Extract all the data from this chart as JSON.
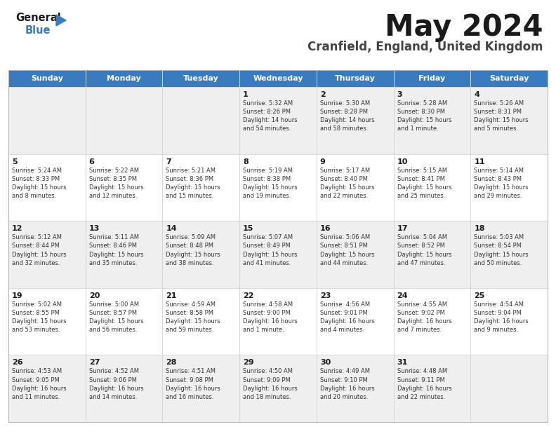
{
  "title": "May 2024",
  "subtitle": "Cranfield, England, United Kingdom",
  "header_color": "#3a7abf",
  "header_text_color": "#ffffff",
  "bg_color": "#ffffff",
  "text_color": "#333333",
  "days_of_week": [
    "Sunday",
    "Monday",
    "Tuesday",
    "Wednesday",
    "Thursday",
    "Friday",
    "Saturday"
  ],
  "calendar_data": [
    [
      "",
      "",
      "",
      "1\nSunrise: 5:32 AM\nSunset: 8:26 PM\nDaylight: 14 hours\nand 54 minutes.",
      "2\nSunrise: 5:30 AM\nSunset: 8:28 PM\nDaylight: 14 hours\nand 58 minutes.",
      "3\nSunrise: 5:28 AM\nSunset: 8:30 PM\nDaylight: 15 hours\nand 1 minute.",
      "4\nSunrise: 5:26 AM\nSunset: 8:31 PM\nDaylight: 15 hours\nand 5 minutes."
    ],
    [
      "5\nSunrise: 5:24 AM\nSunset: 8:33 PM\nDaylight: 15 hours\nand 8 minutes.",
      "6\nSunrise: 5:22 AM\nSunset: 8:35 PM\nDaylight: 15 hours\nand 12 minutes.",
      "7\nSunrise: 5:21 AM\nSunset: 8:36 PM\nDaylight: 15 hours\nand 15 minutes.",
      "8\nSunrise: 5:19 AM\nSunset: 8:38 PM\nDaylight: 15 hours\nand 19 minutes.",
      "9\nSunrise: 5:17 AM\nSunset: 8:40 PM\nDaylight: 15 hours\nand 22 minutes.",
      "10\nSunrise: 5:15 AM\nSunset: 8:41 PM\nDaylight: 15 hours\nand 25 minutes.",
      "11\nSunrise: 5:14 AM\nSunset: 8:43 PM\nDaylight: 15 hours\nand 29 minutes."
    ],
    [
      "12\nSunrise: 5:12 AM\nSunset: 8:44 PM\nDaylight: 15 hours\nand 32 minutes.",
      "13\nSunrise: 5:11 AM\nSunset: 8:46 PM\nDaylight: 15 hours\nand 35 minutes.",
      "14\nSunrise: 5:09 AM\nSunset: 8:48 PM\nDaylight: 15 hours\nand 38 minutes.",
      "15\nSunrise: 5:07 AM\nSunset: 8:49 PM\nDaylight: 15 hours\nand 41 minutes.",
      "16\nSunrise: 5:06 AM\nSunset: 8:51 PM\nDaylight: 15 hours\nand 44 minutes.",
      "17\nSunrise: 5:04 AM\nSunset: 8:52 PM\nDaylight: 15 hours\nand 47 minutes.",
      "18\nSunrise: 5:03 AM\nSunset: 8:54 PM\nDaylight: 15 hours\nand 50 minutes."
    ],
    [
      "19\nSunrise: 5:02 AM\nSunset: 8:55 PM\nDaylight: 15 hours\nand 53 minutes.",
      "20\nSunrise: 5:00 AM\nSunset: 8:57 PM\nDaylight: 15 hours\nand 56 minutes.",
      "21\nSunrise: 4:59 AM\nSunset: 8:58 PM\nDaylight: 15 hours\nand 59 minutes.",
      "22\nSunrise: 4:58 AM\nSunset: 9:00 PM\nDaylight: 16 hours\nand 1 minute.",
      "23\nSunrise: 4:56 AM\nSunset: 9:01 PM\nDaylight: 16 hours\nand 4 minutes.",
      "24\nSunrise: 4:55 AM\nSunset: 9:02 PM\nDaylight: 16 hours\nand 7 minutes.",
      "25\nSunrise: 4:54 AM\nSunset: 9:04 PM\nDaylight: 16 hours\nand 9 minutes."
    ],
    [
      "26\nSunrise: 4:53 AM\nSunset: 9:05 PM\nDaylight: 16 hours\nand 11 minutes.",
      "27\nSunrise: 4:52 AM\nSunset: 9:06 PM\nDaylight: 16 hours\nand 14 minutes.",
      "28\nSunrise: 4:51 AM\nSunset: 9:08 PM\nDaylight: 16 hours\nand 16 minutes.",
      "29\nSunrise: 4:50 AM\nSunset: 9:09 PM\nDaylight: 16 hours\nand 18 minutes.",
      "30\nSunrise: 4:49 AM\nSunset: 9:10 PM\nDaylight: 16 hours\nand 20 minutes.",
      "31\nSunrise: 4:48 AM\nSunset: 9:11 PM\nDaylight: 16 hours\nand 22 minutes.",
      ""
    ]
  ],
  "row_colors": [
    "#efefef",
    "#ffffff",
    "#efefef",
    "#ffffff",
    "#efefef"
  ]
}
